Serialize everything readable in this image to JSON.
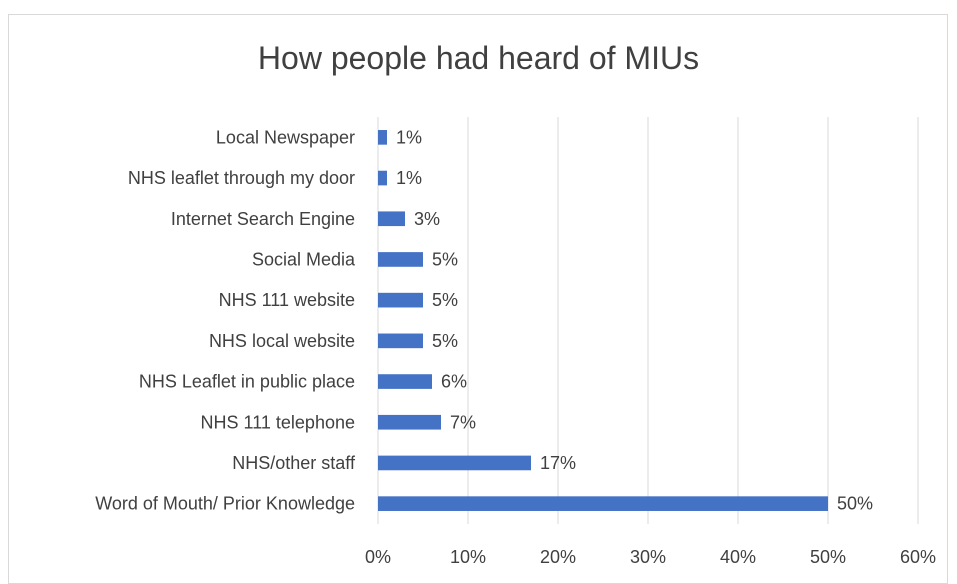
{
  "chart_data": {
    "type": "bar",
    "orientation": "horizontal",
    "title": "How people had heard of MIUs",
    "categories": [
      "Local Newspaper",
      "NHS leaflet through my door",
      "Internet Search Engine",
      "Social Media",
      "NHS 111 website",
      "NHS local website",
      "NHS Leaflet in public place",
      "NHS 111 telephone",
      "NHS/other staff",
      "Word of Mouth/ Prior Knowledge"
    ],
    "values": [
      1,
      1,
      3,
      5,
      5,
      5,
      6,
      7,
      17,
      50
    ],
    "value_labels": [
      "1%",
      "1%",
      "3%",
      "5%",
      "5%",
      "5%",
      "6%",
      "7%",
      "17%",
      "50%"
    ],
    "xlim": [
      0,
      60
    ],
    "x_ticks": [
      0,
      10,
      20,
      30,
      40,
      50,
      60
    ],
    "x_tick_labels": [
      "0%",
      "10%",
      "20%",
      "30%",
      "40%",
      "50%",
      "60%"
    ],
    "grid": "vertical",
    "legend": "none",
    "bar_color": "#4472c4",
    "grid_color": "#d9d9d9",
    "text_color": "#404040"
  }
}
